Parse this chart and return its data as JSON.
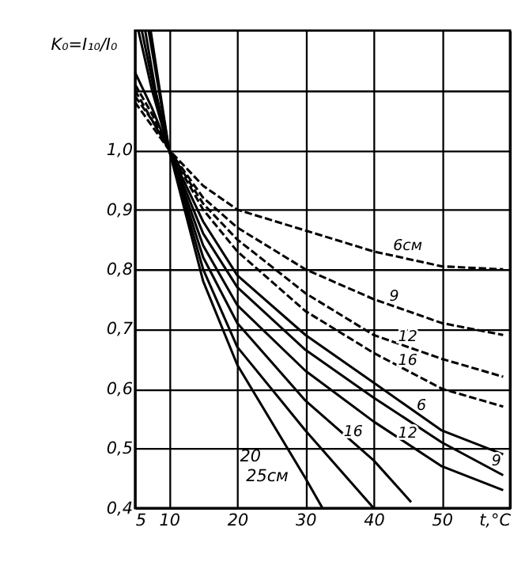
{
  "chart_data": {
    "type": "line",
    "ylabel": "K₀=I₁₀/I₀",
    "xlim": [
      5,
      60
    ],
    "xticks": [
      5,
      10,
      20,
      30,
      40,
      50,
      {
        "value": 60,
        "label": "t,°C"
      }
    ],
    "ylim": [
      0.4,
      1.2
    ],
    "yticks": [
      {
        "value": 0.4,
        "label": "0,4"
      },
      {
        "value": 0.5,
        "label": "0,5"
      },
      {
        "value": 0.6,
        "label": "0,6"
      },
      {
        "value": 0.7,
        "label": "0,7"
      },
      {
        "value": 0.8,
        "label": "0,8"
      },
      {
        "value": 0.9,
        "label": "0,9"
      },
      {
        "value": 1.0,
        "label": "1,0"
      },
      {
        "value": 1.1,
        "label": null
      }
    ],
    "grid": true,
    "marker": "none",
    "series": [
      {
        "color": "#000000",
        "line_style": "dashed",
        "x": [
          5,
          7.5,
          10,
          15,
          20,
          30,
          40,
          50,
          59
        ],
        "values": [
          1.08,
          1.04,
          1.0,
          0.94,
          0.9,
          0.865,
          0.83,
          0.805,
          0.8
        ]
      },
      {
        "color": "#000000",
        "line_style": "dashed",
        "x": [
          5,
          7.5,
          10,
          15,
          20,
          30,
          40,
          50,
          59
        ],
        "values": [
          1.09,
          1.05,
          1.0,
          0.92,
          0.87,
          0.8,
          0.75,
          0.71,
          0.69
        ]
      },
      {
        "color": "#000000",
        "line_style": "dashed",
        "x": [
          5,
          7.5,
          10,
          15,
          20,
          30,
          40,
          50,
          59
        ],
        "values": [
          1.1,
          1.05,
          1.0,
          0.91,
          0.85,
          0.76,
          0.69,
          0.65,
          0.62
        ]
      },
      {
        "color": "#000000",
        "line_style": "dashed",
        "x": [
          5,
          7.5,
          10,
          15,
          20,
          30,
          40,
          50,
          59
        ],
        "values": [
          1.11,
          1.06,
          1.0,
          0.9,
          0.83,
          0.73,
          0.66,
          0.6,
          0.57
        ]
      },
      {
        "color": "#000000",
        "line_style": "solid",
        "x": [
          5,
          7.5,
          10,
          15,
          20,
          30,
          40,
          50,
          59
        ],
        "values": [
          1.13,
          1.07,
          1.0,
          0.88,
          0.79,
          0.69,
          0.61,
          0.53,
          0.49
        ]
      },
      {
        "color": "#000000",
        "line_style": "solid",
        "x": [
          5.5,
          7.5,
          10,
          15,
          20,
          30,
          40,
          50,
          59
        ],
        "values": [
          1.2,
          1.1,
          1.0,
          0.86,
          0.77,
          0.665,
          0.585,
          0.51,
          0.455
        ]
      },
      {
        "color": "#000000",
        "line_style": "solid",
        "x": [
          6,
          8,
          10,
          15,
          20,
          30,
          40,
          50,
          59
        ],
        "values": [
          1.2,
          1.09,
          1.0,
          0.84,
          0.74,
          0.63,
          0.545,
          0.47,
          0.43
        ]
      },
      {
        "color": "#000000",
        "line_style": "solid",
        "x": [
          6.5,
          8,
          10,
          15,
          20,
          30,
          40,
          45.5
        ],
        "values": [
          1.2,
          1.1,
          1.0,
          0.82,
          0.71,
          0.58,
          0.48,
          0.41
        ]
      },
      {
        "color": "#000000",
        "line_style": "solid",
        "x": [
          7,
          8.5,
          10,
          15,
          20,
          30,
          40
        ],
        "values": [
          1.2,
          1.1,
          1.0,
          0.8,
          0.67,
          0.53,
          0.4
        ]
      },
      {
        "color": "#000000",
        "line_style": "solid",
        "x": [
          7.3,
          8.5,
          10,
          15,
          20,
          30,
          32.5
        ],
        "values": [
          1.2,
          1.11,
          1.0,
          0.78,
          0.64,
          0.45,
          0.4
        ]
      }
    ],
    "annotations": [
      {
        "text": "6см",
        "x": 45,
        "y": 0.8225
      },
      {
        "text": "9",
        "x": 43,
        "y": 0.7375
      },
      {
        "text": "12",
        "x": 45,
        "y": 0.67
      },
      {
        "text": "16",
        "x": 45,
        "y": 0.63
      },
      {
        "text": "6",
        "x": 47,
        "y": 0.554
      },
      {
        "text": "9",
        "x": 58,
        "y": 0.461
      },
      {
        "text": "12",
        "x": 45,
        "y": 0.5075
      },
      {
        "text": "16",
        "x": 37,
        "y": 0.51
      },
      "20",
      "25см"
    ]
  }
}
